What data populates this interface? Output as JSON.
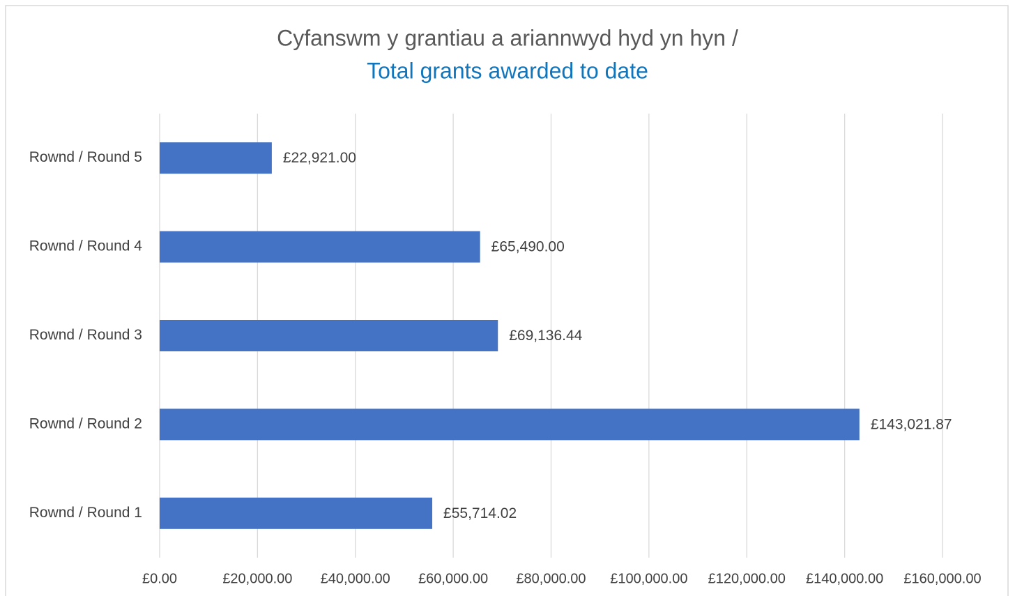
{
  "chart_data": {
    "type": "barh",
    "title": "Cyfanswm y grantiau a ariannwyd hyd yn hyn /",
    "subtitle": "Total grants awarded to date",
    "categories": [
      "Rownd / Round 1",
      "Rownd / Round 2",
      "Rownd / Round 3",
      "Rownd / Round 4",
      "Rownd / Round 5"
    ],
    "values": [
      55714.02,
      143021.87,
      69136.44,
      65490.0,
      22921.0
    ],
    "value_labels": [
      "£55,714.02",
      "£143,021.87",
      "£69,136.44",
      "£65,490.00",
      "£22,921.00"
    ],
    "color": "#4472c4",
    "xlim": [
      0,
      160000
    ],
    "xticks": [
      {
        "value": 0,
        "label": "£0.00"
      },
      {
        "value": 20000,
        "label": "£20,000.00"
      },
      {
        "value": 40000,
        "label": "£40,000.00"
      },
      {
        "value": 60000,
        "label": "£60,000.00"
      },
      {
        "value": 80000,
        "label": "£80,000.00"
      },
      {
        "value": 100000,
        "label": "£100,000.00"
      },
      {
        "value": 120000,
        "label": "£120,000.00"
      },
      {
        "value": 140000,
        "label": "£140,000.00"
      },
      {
        "value": 160000,
        "label": "£160,000.00"
      }
    ],
    "grid": true
  }
}
